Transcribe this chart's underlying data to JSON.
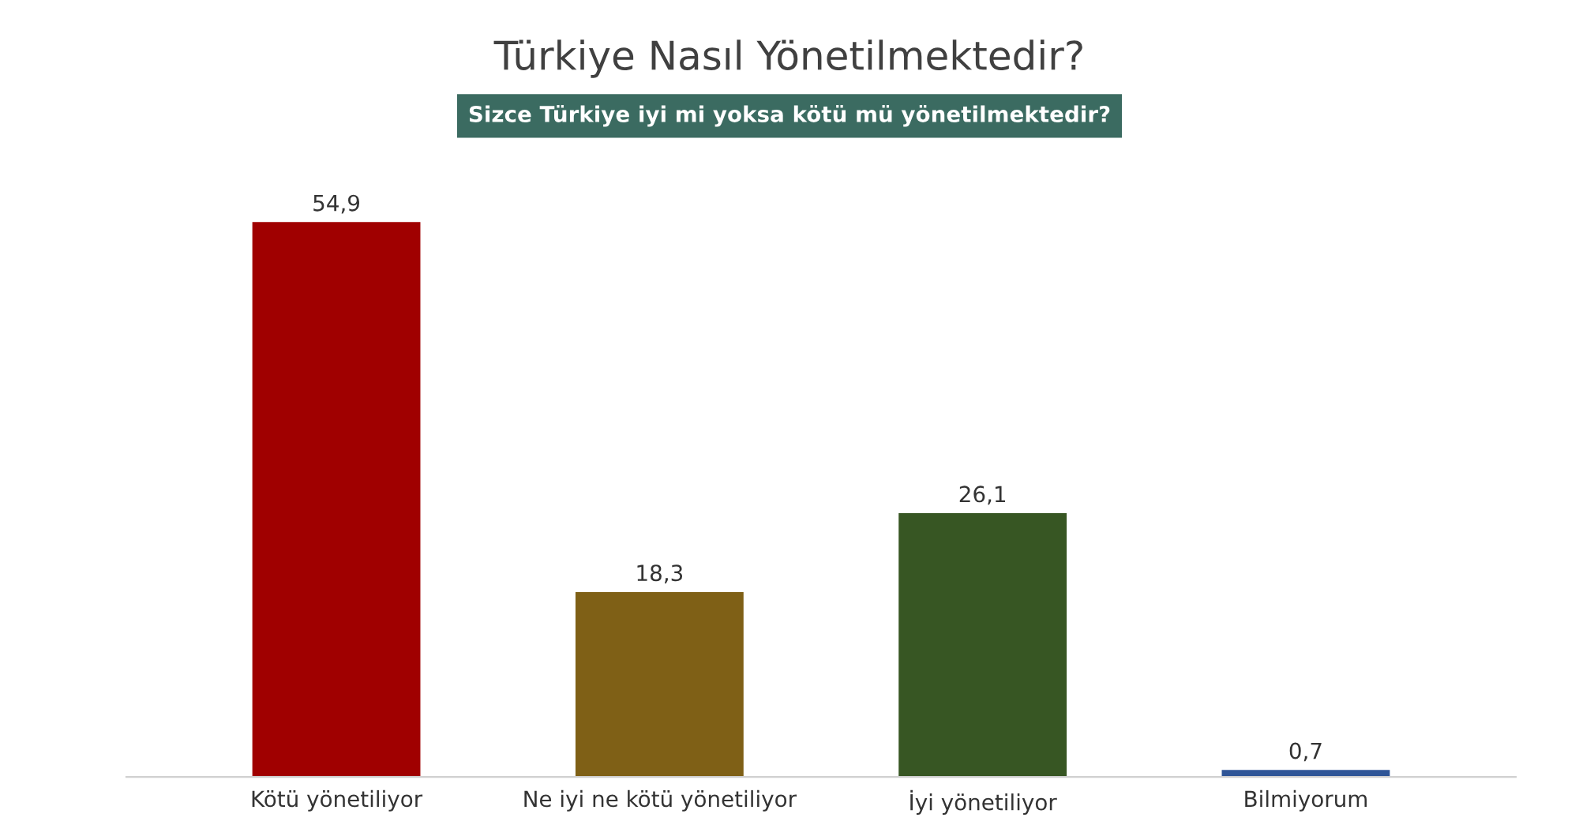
{
  "chart_data": {
    "type": "bar",
    "title": "Türkiye Nasıl Yönetilmektedir?",
    "subtitle": "Sizce Türkiye iyi mi yoksa kötü mü yönetilmektedir?",
    "categories": [
      "Kötü yönetiliyor",
      "Ne iyi ne kötü yönetiliyor",
      "İyi yönetiliyor",
      "Bilmiyorum"
    ],
    "values": [
      54.9,
      18.3,
      26.1,
      0.7
    ],
    "colors": [
      "#a00000",
      "#7f6016",
      "#375623",
      "#2f5597"
    ],
    "value_labels": [
      "54,9",
      "18,3",
      "26,1",
      "0,7"
    ],
    "grid": false,
    "legend": false
  }
}
